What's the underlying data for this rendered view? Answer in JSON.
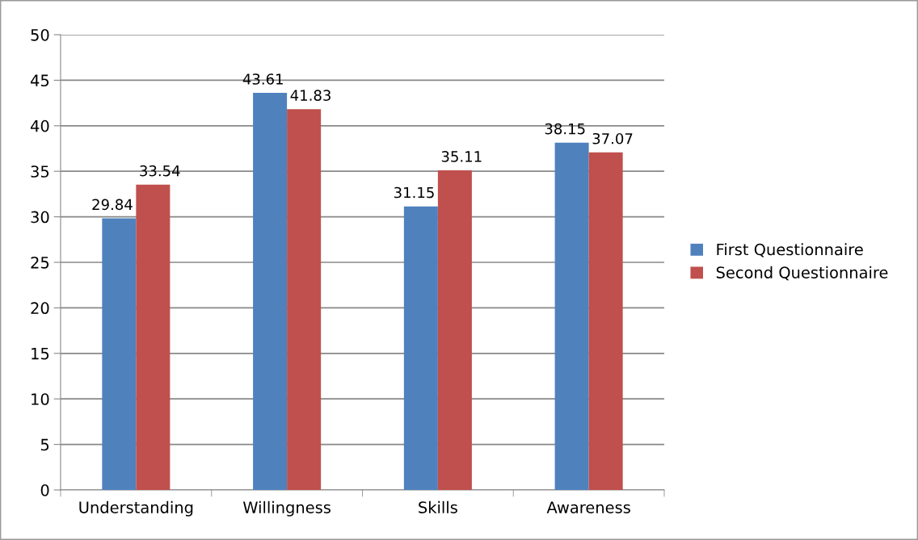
{
  "chart_data": {
    "type": "bar",
    "categories": [
      "Understanding",
      "Willingness",
      "Skills",
      "Awareness"
    ],
    "series": [
      {
        "name": "First Questionnaire",
        "color": "#4f81bd",
        "values": [
          29.84,
          43.61,
          31.15,
          38.15
        ]
      },
      {
        "name": "Second Questionnaire",
        "color": "#c0504d",
        "values": [
          33.54,
          41.83,
          35.11,
          37.07
        ]
      }
    ],
    "ylim": [
      0,
      50
    ],
    "yticks": [
      0,
      5,
      10,
      15,
      20,
      25,
      30,
      35,
      40,
      45,
      50
    ],
    "grid": "y",
    "legend": "right",
    "data_labels": true
  }
}
